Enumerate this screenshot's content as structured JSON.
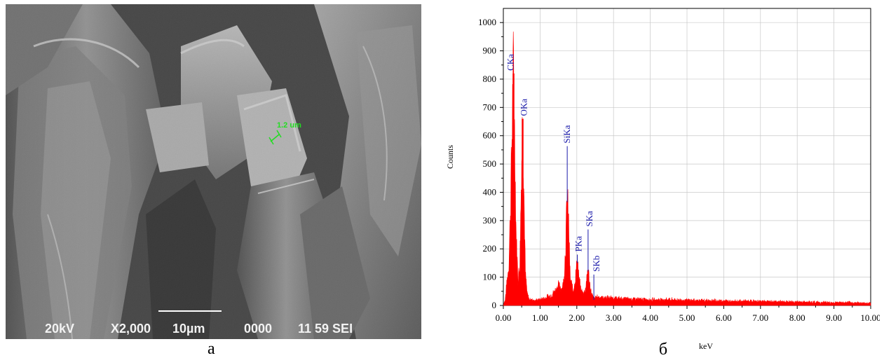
{
  "panel_a": {
    "letter": "а",
    "info_bar": {
      "voltage": "20kV",
      "magnification": "X2,000",
      "scale_bar": "10µm",
      "code": "0000",
      "detector": "11 59 SEI"
    },
    "measurement": "1.2  um",
    "measurement_color": "#22dd22"
  },
  "panel_b": {
    "letter": "б"
  },
  "chart_data": {
    "type": "line",
    "xlabel": "keV",
    "ylabel": "Counts",
    "xlim": [
      0,
      10
    ],
    "ylim": [
      0,
      1050
    ],
    "xticks": [
      "0.00",
      "1.00",
      "2.00",
      "3.00",
      "4.00",
      "5.00",
      "6.00",
      "7.00",
      "8.00",
      "9.00",
      "10.00"
    ],
    "yticks": [
      "0",
      "100",
      "200",
      "300",
      "400",
      "500",
      "600",
      "700",
      "800",
      "900",
      "1000"
    ],
    "grid": true,
    "series_color": "#ff0000",
    "label_color": "#1a1aaa",
    "peaks": [
      {
        "label": "CKa",
        "energy": 0.277,
        "height": 820
      },
      {
        "label": "OKa",
        "energy": 0.525,
        "height": 660
      },
      {
        "label": "SiKa",
        "energy": 1.739,
        "height": 370
      },
      {
        "label": "PKa",
        "energy": 2.013,
        "height": 155
      },
      {
        "label": "SKa",
        "energy": 2.307,
        "height": 125
      },
      {
        "label": "SKb",
        "energy": 2.464,
        "height": 25
      }
    ],
    "spectrum": [
      [
        0.0,
        0
      ],
      [
        0.05,
        20
      ],
      [
        0.1,
        85
      ],
      [
        0.15,
        140
      ],
      [
        0.2,
        360
      ],
      [
        0.25,
        700
      ],
      [
        0.277,
        820
      ],
      [
        0.3,
        660
      ],
      [
        0.35,
        240
      ],
      [
        0.4,
        90
      ],
      [
        0.45,
        150
      ],
      [
        0.5,
        520
      ],
      [
        0.525,
        660
      ],
      [
        0.55,
        480
      ],
      [
        0.6,
        110
      ],
      [
        0.65,
        40
      ],
      [
        0.7,
        22
      ],
      [
        0.8,
        20
      ],
      [
        0.9,
        18
      ],
      [
        1.0,
        20
      ],
      [
        1.1,
        25
      ],
      [
        1.2,
        30
      ],
      [
        1.3,
        35
      ],
      [
        1.4,
        50
      ],
      [
        1.5,
        70
      ],
      [
        1.55,
        65
      ],
      [
        1.6,
        60
      ],
      [
        1.65,
        90
      ],
      [
        1.7,
        230
      ],
      [
        1.739,
        370
      ],
      [
        1.78,
        280
      ],
      [
        1.82,
        90
      ],
      [
        1.9,
        55
      ],
      [
        1.95,
        80
      ],
      [
        2.013,
        155
      ],
      [
        2.06,
        90
      ],
      [
        2.12,
        50
      ],
      [
        2.2,
        45
      ],
      [
        2.25,
        70
      ],
      [
        2.307,
        125
      ],
      [
        2.35,
        75
      ],
      [
        2.4,
        40
      ],
      [
        2.464,
        25
      ],
      [
        2.55,
        30
      ],
      [
        2.7,
        28
      ],
      [
        3.0,
        26
      ],
      [
        3.2,
        24
      ],
      [
        3.5,
        23
      ],
      [
        4.0,
        20
      ],
      [
        4.5,
        21
      ],
      [
        5.0,
        18
      ],
      [
        5.5,
        17
      ],
      [
        6.0,
        16
      ],
      [
        6.5,
        15
      ],
      [
        7.0,
        14
      ],
      [
        7.5,
        13
      ],
      [
        8.0,
        12
      ],
      [
        8.5,
        11
      ],
      [
        9.0,
        10
      ],
      [
        9.5,
        9
      ],
      [
        10.0,
        8
      ]
    ]
  }
}
